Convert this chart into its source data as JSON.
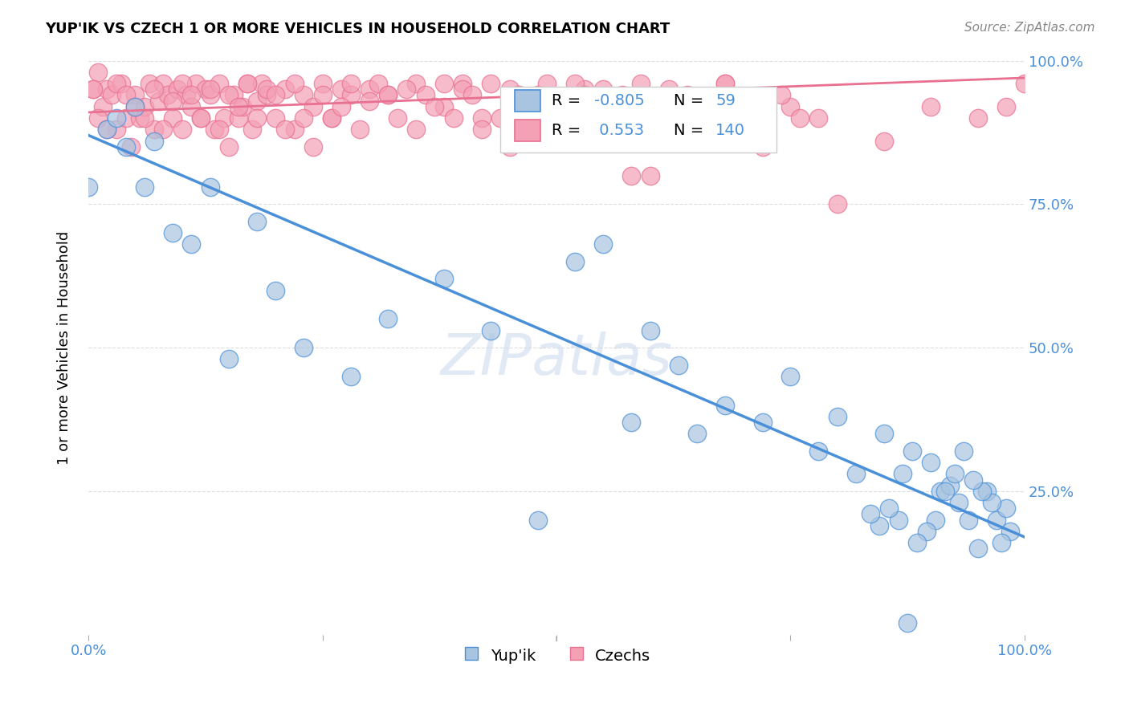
{
  "title": "YUP'IK VS CZECH 1 OR MORE VEHICLES IN HOUSEHOLD CORRELATION CHART",
  "source_text": "Source: ZipAtlas.com",
  "ylabel": "1 or more Vehicles in Household",
  "xlim": [
    0.0,
    1.0
  ],
  "ylim": [
    0.0,
    1.0
  ],
  "yupik_color": "#A8C4E0",
  "czech_color": "#F4A0B5",
  "yupik_edge_color": "#4A90D9",
  "czech_edge_color": "#E87090",
  "yupik_line_color": "#4A90D9",
  "czech_line_color": "#E87090",
  "R_yupik": -0.805,
  "N_yupik": 59,
  "R_czech": 0.553,
  "N_czech": 140,
  "yupik_line_x": [
    0.0,
    1.0
  ],
  "yupik_line_y": [
    0.87,
    0.17
  ],
  "czech_line_x": [
    0.0,
    1.0
  ],
  "czech_line_y": [
    0.91,
    0.97
  ],
  "yupik_x": [
    0.0,
    0.02,
    0.03,
    0.04,
    0.05,
    0.06,
    0.07,
    0.09,
    0.11,
    0.13,
    0.15,
    0.18,
    0.2,
    0.23,
    0.28,
    0.32,
    0.38,
    0.43,
    0.48,
    0.52,
    0.55,
    0.58,
    0.6,
    0.63,
    0.65,
    0.68,
    0.72,
    0.75,
    0.78,
    0.8,
    0.82,
    0.85,
    0.87,
    0.88,
    0.9,
    0.91,
    0.92,
    0.93,
    0.94,
    0.95,
    0.96,
    0.97,
    0.98,
    0.985,
    0.975,
    0.965,
    0.955,
    0.945,
    0.935,
    0.925,
    0.915,
    0.905,
    0.895,
    0.885,
    0.875,
    0.865,
    0.855,
    0.845,
    0.835
  ],
  "yupik_y": [
    0.78,
    0.88,
    0.9,
    0.85,
    0.92,
    0.78,
    0.86,
    0.7,
    0.68,
    0.78,
    0.48,
    0.72,
    0.6,
    0.5,
    0.45,
    0.55,
    0.62,
    0.53,
    0.2,
    0.65,
    0.68,
    0.37,
    0.53,
    0.47,
    0.35,
    0.4,
    0.37,
    0.45,
    0.32,
    0.38,
    0.28,
    0.35,
    0.28,
    0.32,
    0.3,
    0.25,
    0.26,
    0.23,
    0.2,
    0.15,
    0.25,
    0.2,
    0.22,
    0.18,
    0.16,
    0.23,
    0.25,
    0.27,
    0.32,
    0.28,
    0.25,
    0.2,
    0.18,
    0.16,
    0.02,
    0.2,
    0.22,
    0.19,
    0.21
  ],
  "czech_x": [
    0.005,
    0.01,
    0.015,
    0.02,
    0.025,
    0.03,
    0.035,
    0.04,
    0.045,
    0.05,
    0.055,
    0.06,
    0.065,
    0.07,
    0.075,
    0.08,
    0.085,
    0.09,
    0.095,
    0.1,
    0.105,
    0.11,
    0.115,
    0.12,
    0.125,
    0.13,
    0.135,
    0.14,
    0.145,
    0.15,
    0.155,
    0.16,
    0.165,
    0.17,
    0.175,
    0.18,
    0.185,
    0.19,
    0.2,
    0.21,
    0.22,
    0.23,
    0.24,
    0.25,
    0.26,
    0.27,
    0.28,
    0.3,
    0.32,
    0.35,
    0.38,
    0.4,
    0.42,
    0.45,
    0.48,
    0.5,
    0.53,
    0.55,
    0.58,
    0.6,
    0.65,
    0.68,
    0.72,
    0.75,
    0.78,
    0.8,
    0.85,
    0.9,
    0.95,
    0.98,
    1.0,
    0.005,
    0.01,
    0.02,
    0.03,
    0.04,
    0.05,
    0.06,
    0.07,
    0.08,
    0.09,
    0.1,
    0.11,
    0.12,
    0.13,
    0.14,
    0.15,
    0.16,
    0.17,
    0.18,
    0.19,
    0.2,
    0.21,
    0.22,
    0.23,
    0.24,
    0.25,
    0.26,
    0.27,
    0.28,
    0.29,
    0.3,
    0.31,
    0.32,
    0.33,
    0.34,
    0.35,
    0.36,
    0.37,
    0.38,
    0.39,
    0.4,
    0.41,
    0.42,
    0.43,
    0.44,
    0.45,
    0.46,
    0.47,
    0.48,
    0.49,
    0.5,
    0.51,
    0.52,
    0.53,
    0.54,
    0.55,
    0.56,
    0.57,
    0.58,
    0.59,
    0.6,
    0.62,
    0.64,
    0.66,
    0.68,
    0.7,
    0.72,
    0.74,
    0.76
  ],
  "czech_y": [
    0.95,
    0.98,
    0.92,
    0.95,
    0.94,
    0.88,
    0.96,
    0.9,
    0.85,
    0.94,
    0.9,
    0.92,
    0.96,
    0.88,
    0.93,
    0.96,
    0.94,
    0.9,
    0.95,
    0.88,
    0.94,
    0.92,
    0.96,
    0.9,
    0.95,
    0.94,
    0.88,
    0.96,
    0.9,
    0.85,
    0.94,
    0.9,
    0.92,
    0.96,
    0.88,
    0.93,
    0.96,
    0.94,
    0.9,
    0.95,
    0.88,
    0.94,
    0.92,
    0.96,
    0.9,
    0.95,
    0.94,
    0.95,
    0.94,
    0.96,
    0.92,
    0.96,
    0.9,
    0.95,
    0.94,
    0.9,
    0.95,
    0.88,
    0.8,
    0.8,
    0.92,
    0.96,
    0.86,
    0.92,
    0.9,
    0.75,
    0.86,
    0.92,
    0.9,
    0.92,
    0.96,
    0.95,
    0.9,
    0.88,
    0.96,
    0.94,
    0.92,
    0.9,
    0.95,
    0.88,
    0.93,
    0.96,
    0.94,
    0.9,
    0.95,
    0.88,
    0.94,
    0.92,
    0.96,
    0.9,
    0.95,
    0.94,
    0.88,
    0.96,
    0.9,
    0.85,
    0.94,
    0.9,
    0.92,
    0.96,
    0.88,
    0.93,
    0.96,
    0.94,
    0.9,
    0.95,
    0.88,
    0.94,
    0.92,
    0.96,
    0.9,
    0.95,
    0.94,
    0.88,
    0.96,
    0.9,
    0.85,
    0.94,
    0.9,
    0.92,
    0.96,
    0.88,
    0.93,
    0.96,
    0.94,
    0.9,
    0.95,
    0.88,
    0.94,
    0.92,
    0.96,
    0.9,
    0.95,
    0.94,
    0.88,
    0.96,
    0.9,
    0.85,
    0.94,
    0.9
  ]
}
